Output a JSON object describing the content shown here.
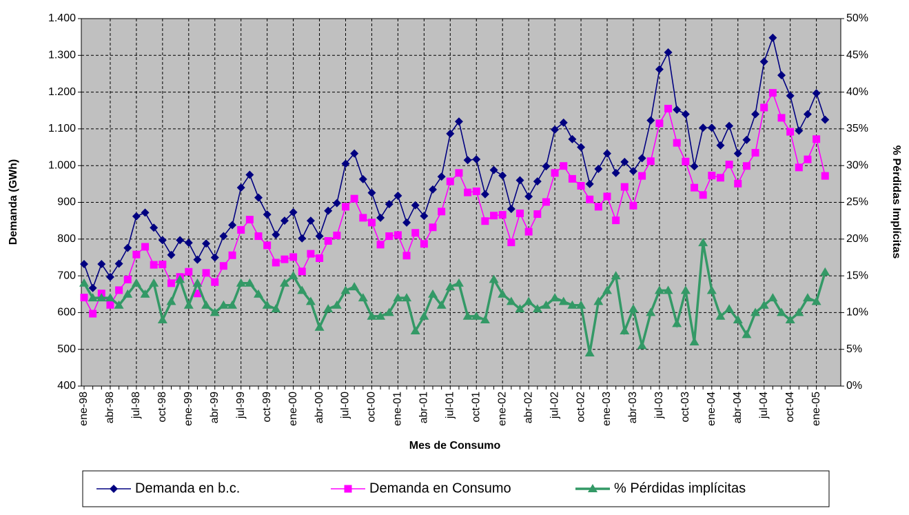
{
  "chart_data": {
    "type": "line",
    "x_label": "Mes de Consumo",
    "y_label": "Demanda (GWh)",
    "y2_label": "% Pérdidas Implícitas",
    "categories": [
      "ene-98",
      null,
      null,
      "abr-98",
      null,
      null,
      "jul-98",
      null,
      null,
      "oct-98",
      null,
      null,
      "ene-99",
      null,
      null,
      "abr-99",
      null,
      null,
      "jul-99",
      null,
      null,
      "oct-99",
      null,
      null,
      "ene-00",
      null,
      null,
      "abr-00",
      null,
      null,
      "jul-00",
      null,
      null,
      "oct-00",
      null,
      null,
      "ene-01",
      null,
      null,
      "abr-01",
      null,
      null,
      "jul-01",
      null,
      null,
      "oct-01",
      null,
      null,
      "ene-02",
      null,
      null,
      "abr-02",
      null,
      null,
      "jul-02",
      null,
      null,
      "oct-02",
      null,
      null,
      "ene-03",
      null,
      null,
      "abr-03",
      null,
      null,
      "jul-03",
      null,
      null,
      "oct-03",
      null,
      null,
      "ene-04",
      null,
      null,
      "abr-04",
      null,
      null,
      "jul-04",
      null,
      null,
      "oct-04",
      null,
      null,
      "ene-05",
      null
    ],
    "series": [
      {
        "name": "Demanda en b.c.",
        "color": "#000080",
        "marker": "diamond",
        "values": [
          732,
          667,
          732,
          697,
          733,
          776,
          862,
          872,
          831,
          797,
          757,
          797,
          790,
          744,
          788,
          750,
          808,
          838,
          940,
          975,
          913,
          867,
          812,
          850,
          873,
          802,
          850,
          808,
          877,
          898,
          1005,
          1033,
          963,
          926,
          858,
          895,
          918,
          845,
          892,
          863,
          935,
          970,
          1087,
          1120,
          1015,
          1017,
          922,
          988,
          973,
          882,
          960,
          916,
          957,
          998,
          1098,
          1117,
          1072,
          1050,
          950,
          991,
          1033,
          980,
          1010,
          985,
          1020,
          1123,
          1262,
          1308,
          1152,
          1140,
          998,
          1103,
          1103,
          1055,
          1108,
          1033,
          1070,
          1140,
          1283,
          1348,
          1246,
          1190,
          1095,
          1140,
          1197,
          1125
        ]
      },
      {
        "name": "Demanda en Consumo",
        "color": "#ff00ff",
        "marker": "square",
        "values": [
          641,
          597,
          652,
          621,
          661,
          690,
          758,
          779,
          730,
          731,
          680,
          697,
          711,
          652,
          708,
          683,
          727,
          756,
          825,
          853,
          808,
          783,
          736,
          745,
          751,
          712,
          760,
          748,
          795,
          810,
          888,
          910,
          858,
          845,
          785,
          808,
          811,
          755,
          817,
          787,
          832,
          875,
          957,
          980,
          927,
          930,
          849,
          864,
          866,
          791,
          870,
          820,
          868,
          901,
          980,
          999,
          964,
          945,
          908,
          888,
          916,
          851,
          942,
          891,
          972,
          1012,
          1115,
          1155,
          1062,
          1011,
          940,
          920,
          973,
          967,
          1003,
          951,
          999,
          1035,
          1158,
          1198,
          1130,
          1092,
          995,
          1017,
          1072,
          972
        ]
      },
      {
        "name": "% Pérdidas implícitas",
        "color": "#339966",
        "marker": "triangle",
        "axis": "y2",
        "values": [
          14,
          12,
          12,
          12,
          11,
          12.5,
          14,
          12.5,
          14,
          9,
          11.5,
          14.5,
          11,
          14,
          11,
          10,
          11,
          11,
          14,
          14,
          12.5,
          11,
          10.5,
          14,
          15,
          13,
          11.5,
          8,
          10.5,
          11,
          13,
          13.5,
          12,
          9.5,
          9.5,
          10,
          12,
          12,
          7.5,
          9.5,
          12.5,
          11,
          13.5,
          14,
          9.5,
          9.5,
          9,
          14.5,
          12.5,
          11.5,
          10.5,
          11.5,
          10.5,
          11,
          12,
          11.5,
          11,
          11,
          4.5,
          11.5,
          13,
          15,
          7.5,
          10.5,
          5.5,
          10,
          13,
          13,
          8.5,
          13,
          6,
          19.5,
          13,
          9.5,
          10.5,
          9,
          7,
          10,
          11,
          12,
          10,
          9,
          10,
          12,
          11.5,
          15.5
        ]
      }
    ],
    "ylim": [
      400,
      1400
    ],
    "yticks": [
      400,
      500,
      600,
      700,
      800,
      900,
      {
        "value": 1000,
        "label": "1.000"
      },
      {
        "value": 1100,
        "label": "1.100"
      },
      {
        "value": 1200,
        "label": "1.200"
      },
      {
        "value": 1300,
        "label": "1.300"
      },
      {
        "value": 1400,
        "label": "1.400"
      }
    ],
    "y2lim": [
      0,
      50
    ],
    "y2ticks": [
      {
        "value": 0,
        "label": "0%"
      },
      {
        "value": 5,
        "label": "5%"
      },
      {
        "value": 10,
        "label": "10%"
      },
      {
        "value": 15,
        "label": "15%"
      },
      {
        "value": 20,
        "label": "20%"
      },
      {
        "value": 25,
        "label": "25%"
      },
      {
        "value": 30,
        "label": "30%"
      },
      {
        "value": 35,
        "label": "35%"
      },
      {
        "value": 40,
        "label": "40%"
      },
      {
        "value": 45,
        "label": "45%"
      },
      {
        "value": 50,
        "label": "50%"
      }
    ],
    "grid": true,
    "legend": "bottom",
    "background": "#c0c0c0"
  }
}
